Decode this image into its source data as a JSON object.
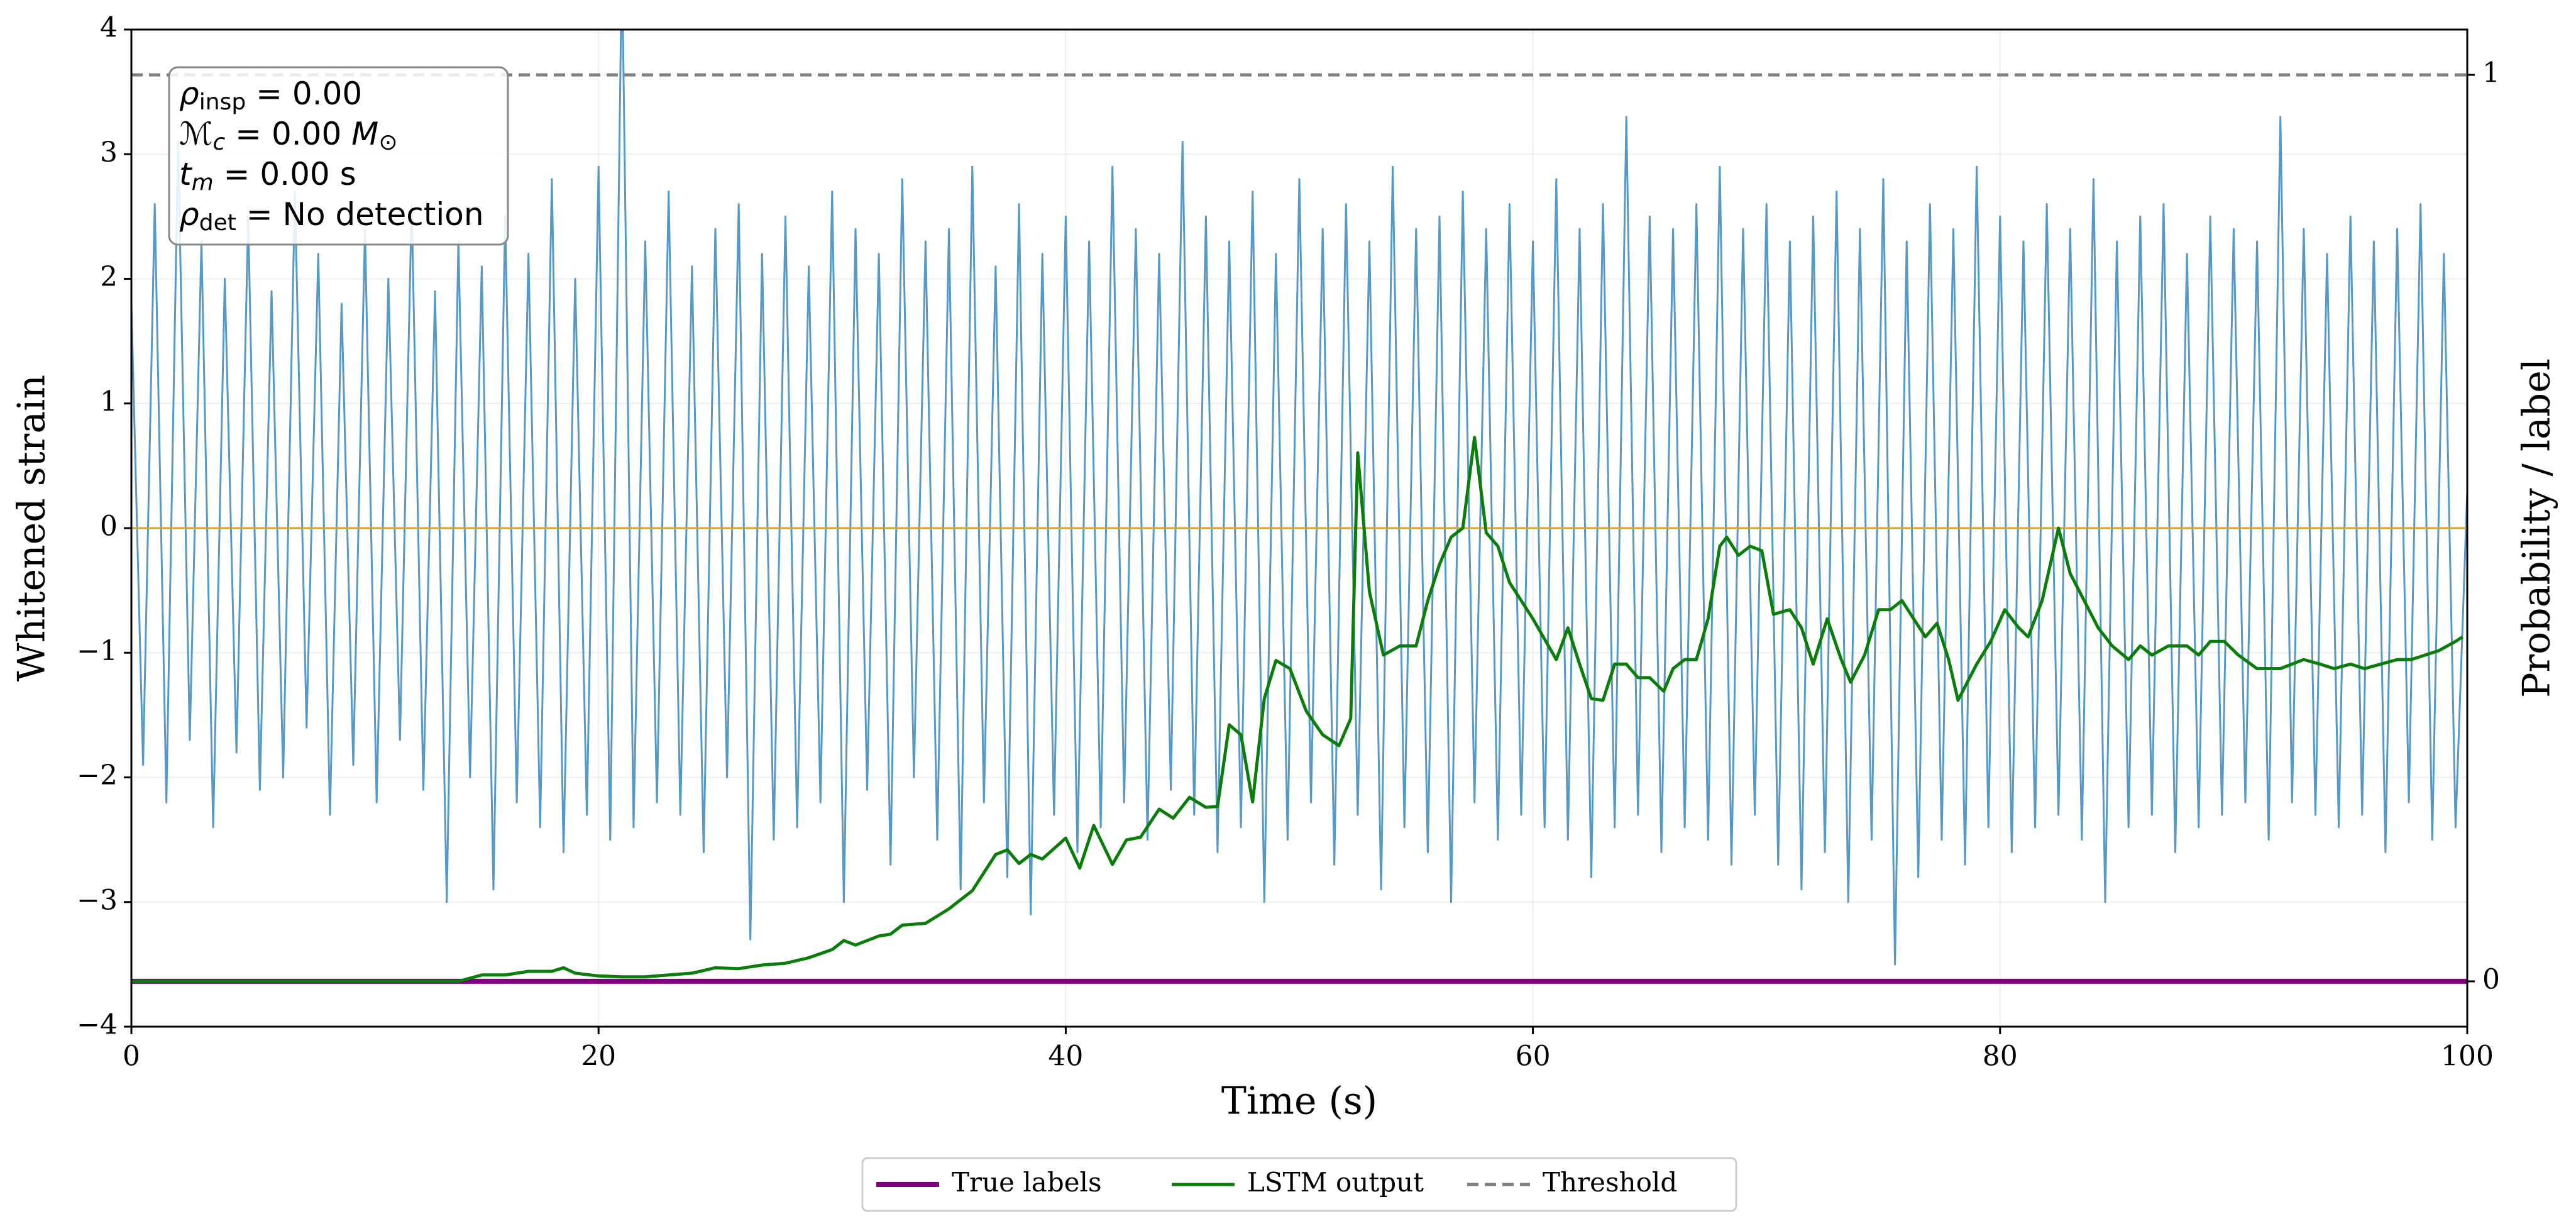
{
  "chart_data": {
    "type": "line",
    "xlabel": "Time (s)",
    "ylabel": "Whitened strain",
    "y2label": "Probability / label",
    "xlim": [
      0,
      100
    ],
    "xticks": [
      0,
      20,
      40,
      60,
      80,
      100
    ],
    "ylim": [
      -4,
      4
    ],
    "yticks": [
      {
        "value": -4,
        "label": "−4"
      },
      {
        "value": -3,
        "label": "−3"
      },
      {
        "value": -2,
        "label": "−2"
      },
      {
        "value": -1,
        "label": "−1"
      },
      0,
      1,
      2,
      3,
      4
    ],
    "y2lim": [
      -0.05,
      1.05
    ],
    "y2ticks": [
      0,
      1
    ],
    "grid": true,
    "legend": "lower center outside",
    "annotation": [
      [
        {
          "text": "ρ",
          "italic": true
        },
        {
          "text": "insp",
          "sub": true
        },
        {
          "text": " = 0.00"
        }
      ],
      [
        {
          "text": "ℳ",
          "italic": true
        },
        {
          "text": "c",
          "sub": true,
          "italic": true
        },
        {
          "text": " = 0.00 "
        },
        {
          "text": "M",
          "italic": true
        },
        {
          "text": "⊙",
          "sub": true
        }
      ],
      [
        {
          "text": "t",
          "italic": true
        },
        {
          "text": "m",
          "sub": true,
          "italic": true
        },
        {
          "text": " = 0.00 s"
        }
      ],
      [
        {
          "text": "ρ",
          "italic": true
        },
        {
          "text": "det",
          "sub": true
        },
        {
          "text": " = No detection"
        }
      ]
    ],
    "series": [
      {
        "color": "#5799c6",
        "width": 3,
        "x": [
          0,
          0.5,
          1,
          1.5,
          2,
          2.5,
          3,
          3.5,
          4,
          4.5,
          5,
          5.5,
          6,
          6.5,
          7,
          7.5,
          8,
          8.5,
          9,
          9.5,
          10,
          10.5,
          11,
          11.5,
          12,
          12.5,
          13,
          13.5,
          14,
          14.5,
          15,
          15.5,
          16,
          16.5,
          17,
          17.5,
          18,
          18.5,
          19,
          19.5,
          20,
          20.5,
          21,
          21.5,
          22,
          22.5,
          23,
          23.5,
          24,
          24.5,
          25,
          25.5,
          26,
          26.5,
          27,
          27.5,
          28,
          28.5,
          29,
          29.5,
          30,
          30.5,
          31,
          31.5,
          32,
          32.5,
          33,
          33.5,
          34,
          34.5,
          35,
          35.5,
          36,
          36.5,
          37,
          37.5,
          38,
          38.5,
          39,
          39.5,
          40,
          40.5,
          41,
          41.5,
          42,
          42.5,
          43,
          43.5,
          44,
          44.5,
          45,
          45.5,
          46,
          46.5,
          47,
          47.5,
          48,
          48.5,
          49,
          49.5,
          50,
          50.5,
          51,
          51.5,
          52,
          52.5,
          53,
          53.5,
          54,
          54.5,
          55,
          55.5,
          56,
          56.5,
          57,
          57.5,
          58,
          58.5,
          59,
          59.5,
          60,
          60.5,
          61,
          61.5,
          62,
          62.5,
          63,
          63.5,
          64,
          64.5,
          65,
          65.5,
          66,
          66.5,
          67,
          67.5,
          68,
          68.5,
          69,
          69.5,
          70,
          70.5,
          71,
          71.5,
          72,
          72.5,
          73,
          73.5,
          74,
          74.5,
          75,
          75.5,
          76,
          76.5,
          77,
          77.5,
          78,
          78.5,
          79,
          79.5,
          80,
          80.5,
          81,
          81.5,
          82,
          82.5,
          83,
          83.5,
          84,
          84.5,
          85,
          85.5,
          86,
          86.5,
          87,
          87.5,
          88,
          88.5,
          89,
          89.5,
          90,
          90.5,
          91,
          91.5,
          92,
          92.5,
          93,
          93.5,
          94,
          94.5,
          95,
          95.5,
          96,
          96.5,
          97,
          97.5,
          98,
          98.5,
          99,
          99.5,
          100
        ],
        "values": [
          1.8,
          -1.9,
          2.6,
          -2.2,
          3.1,
          -1.7,
          2.3,
          -2.4,
          2.0,
          -1.8,
          2.5,
          -2.1,
          1.9,
          -2.0,
          2.7,
          -1.6,
          2.2,
          -2.3,
          1.8,
          -1.9,
          2.4,
          -2.2,
          2.0,
          -1.7,
          2.6,
          -2.1,
          1.9,
          -3.0,
          2.3,
          -2.0,
          2.1,
          -2.9,
          2.5,
          -2.2,
          2.2,
          -2.4,
          2.8,
          -2.6,
          2.0,
          -2.3,
          2.9,
          -2.5,
          4.6,
          -2.4,
          2.3,
          -2.2,
          2.7,
          -2.3,
          2.1,
          -2.6,
          2.4,
          -2.0,
          2.6,
          -3.3,
          2.2,
          -2.5,
          2.5,
          -2.4,
          2.1,
          -2.2,
          2.7,
          -3.0,
          2.4,
          -2.1,
          2.2,
          -2.7,
          2.8,
          -2.0,
          2.3,
          -2.5,
          2.4,
          -2.9,
          2.9,
          -2.2,
          2.1,
          -2.8,
          2.6,
          -3.1,
          2.2,
          -2.3,
          2.5,
          -2.6,
          2.3,
          -2.4,
          2.9,
          -2.2,
          2.4,
          -2.5,
          2.2,
          -2.1,
          3.1,
          -2.3,
          2.5,
          -2.6,
          2.3,
          -2.4,
          2.7,
          -3.0,
          2.2,
          -2.5,
          2.8,
          -2.2,
          2.4,
          -2.7,
          2.6,
          -2.3,
          2.3,
          -2.9,
          2.9,
          -2.4,
          2.4,
          -2.6,
          2.5,
          -3.0,
          2.7,
          -2.2,
          2.4,
          -2.5,
          2.6,
          -2.3,
          2.3,
          -2.4,
          2.8,
          -2.5,
          2.4,
          -2.8,
          2.6,
          -2.4,
          3.3,
          -2.3,
          2.5,
          -2.6,
          2.4,
          -2.4,
          2.6,
          -2.5,
          2.9,
          -2.7,
          2.4,
          -2.3,
          2.6,
          -2.7,
          2.3,
          -2.9,
          2.5,
          -2.6,
          2.7,
          -3.0,
          2.4,
          -2.5,
          2.8,
          -3.5,
          2.3,
          -2.8,
          2.6,
          -2.5,
          2.4,
          -2.7,
          2.9,
          -2.4,
          2.5,
          -2.6,
          2.3,
          -2.4,
          2.6,
          -2.3,
          2.4,
          -2.5,
          2.8,
          -3.0,
          2.3,
          -2.4,
          2.5,
          -2.3,
          2.6,
          -2.6,
          2.2,
          -2.4,
          2.5,
          -2.3,
          2.4,
          -2.2,
          2.3,
          -2.5,
          3.3,
          -2.2,
          2.4,
          -2.3,
          2.2,
          -2.4,
          2.5,
          -2.3,
          2.3,
          -2.6,
          2.4,
          -2.2,
          2.6,
          -2.5,
          2.2,
          -2.4,
          0.3
        ]
      },
      {
        "color": "#d4a62a",
        "width": 3,
        "x": [
          0,
          100
        ],
        "values": [
          0,
          0
        ]
      },
      {
        "name": "True labels",
        "color": "#800080",
        "width": 8,
        "axis": "y2",
        "x": [
          0,
          100
        ],
        "values": [
          0,
          0
        ]
      },
      {
        "name": "LSTM output",
        "color": "#0a7d0a",
        "width": 5,
        "axis": "y2",
        "x": [
          0,
          14,
          15,
          16,
          17,
          18,
          18.5,
          19,
          20,
          21,
          22,
          23,
          24,
          25,
          26,
          27,
          28,
          29,
          30,
          30.5,
          31,
          32,
          32.5,
          33,
          34,
          35,
          35.5,
          36,
          37,
          37.5,
          38,
          38.5,
          39,
          40,
          40.6,
          41.2,
          42,
          42.6,
          43.2,
          44,
          44.6,
          45.3,
          46,
          46.5,
          47,
          47.5,
          48,
          48.5,
          49,
          49.6,
          50.3,
          51,
          51.7,
          52.2,
          52.5,
          53,
          53.6,
          54.3,
          55,
          55.5,
          56,
          56.5,
          57,
          57.5,
          58,
          58.5,
          59,
          60,
          61,
          61.5,
          62,
          62.5,
          63,
          63.5,
          64,
          64.5,
          65,
          65.6,
          66,
          66.5,
          67,
          67.5,
          68,
          68.3,
          68.8,
          69.3,
          69.8,
          70.3,
          71,
          71.5,
          72,
          72.6,
          73.2,
          73.6,
          74.2,
          74.8,
          75.3,
          75.8,
          76.3,
          76.8,
          77.3,
          77.8,
          78.2,
          79,
          79.6,
          80.2,
          80.8,
          81.2,
          81.8,
          82.5,
          83,
          83.6,
          84.2,
          84.8,
          85.5,
          86,
          86.5,
          87.2,
          88,
          88.5,
          89,
          89.6,
          90.2,
          91,
          92,
          93,
          93.7,
          94.3,
          95,
          95.6,
          96.3,
          97,
          97.6,
          98.2,
          98.8,
          99.5,
          99.8
        ],
        "values": [
          0,
          0,
          0.007,
          0.007,
          0.011,
          0.011,
          0.015,
          0.009,
          0.006,
          0.005,
          0.005,
          0.007,
          0.009,
          0.015,
          0.014,
          0.018,
          0.02,
          0.026,
          0.035,
          0.045,
          0.04,
          0.05,
          0.052,
          0.062,
          0.064,
          0.08,
          0.09,
          0.1,
          0.14,
          0.145,
          0.13,
          0.14,
          0.135,
          0.158,
          0.125,
          0.172,
          0.129,
          0.156,
          0.159,
          0.19,
          0.18,
          0.203,
          0.192,
          0.193,
          0.283,
          0.272,
          0.198,
          0.312,
          0.354,
          0.345,
          0.298,
          0.272,
          0.26,
          0.29,
          0.583,
          0.43,
          0.36,
          0.37,
          0.37,
          0.42,
          0.46,
          0.49,
          0.5,
          0.6,
          0.495,
          0.48,
          0.44,
          0.4,
          0.355,
          0.39,
          0.35,
          0.312,
          0.31,
          0.35,
          0.35,
          0.335,
          0.335,
          0.32,
          0.345,
          0.355,
          0.355,
          0.4,
          0.48,
          0.49,
          0.47,
          0.48,
          0.475,
          0.405,
          0.41,
          0.39,
          0.35,
          0.4,
          0.355,
          0.33,
          0.36,
          0.41,
          0.41,
          0.42,
          0.4,
          0.38,
          0.395,
          0.355,
          0.31,
          0.35,
          0.375,
          0.41,
          0.39,
          0.38,
          0.42,
          0.5,
          0.45,
          0.42,
          0.39,
          0.37,
          0.355,
          0.37,
          0.36,
          0.37,
          0.37,
          0.36,
          0.375,
          0.375,
          0.36,
          0.345,
          0.345,
          0.355,
          0.35,
          0.345,
          0.35,
          0.345,
          0.35,
          0.355,
          0.355,
          0.36,
          0.365,
          0.375,
          0.38
        ]
      },
      {
        "name": "Threshold",
        "color": "#808080",
        "width": 5,
        "dashed": true,
        "axis": "y2",
        "x": [
          0,
          100
        ],
        "values": [
          1,
          1
        ]
      }
    ]
  }
}
